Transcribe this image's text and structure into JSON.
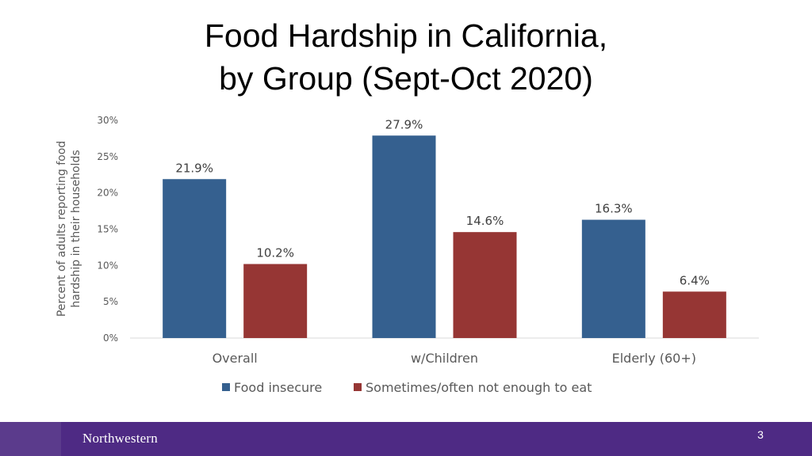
{
  "slide": {
    "title_line1": "Food Hardship in California,",
    "title_line2": "by Group (Sept-Oct 2020)",
    "page_number": "3",
    "logo_text": "Northwestern",
    "footer_color": "#4e2a84"
  },
  "chart_data": {
    "type": "bar",
    "ylabel_line1": "Percent of adults reporting food",
    "ylabel_line2": "hardship in their households",
    "ylim": [
      0,
      30
    ],
    "yticks": [
      {
        "value": 0,
        "label": "0%"
      },
      {
        "value": 5,
        "label": "5%"
      },
      {
        "value": 10,
        "label": "10%"
      },
      {
        "value": 15,
        "label": "15%"
      },
      {
        "value": 20,
        "label": "20%"
      },
      {
        "value": 25,
        "label": "25%"
      },
      {
        "value": 30,
        "label": "30%"
      }
    ],
    "categories": [
      "Overall",
      "w/Children",
      "Elderly (60+)"
    ],
    "series": [
      {
        "name": "Food insecure",
        "color": "#35608f",
        "values": [
          21.9,
          27.9,
          16.3
        ],
        "labels": [
          "21.9%",
          "27.9%",
          "16.3%"
        ]
      },
      {
        "name": "Sometimes/often not enough to eat",
        "color": "#963634",
        "values": [
          10.2,
          14.6,
          6.4
        ],
        "labels": [
          "10.2%",
          "14.6%",
          "6.4%"
        ]
      }
    ],
    "grid": false,
    "legend_position": "bottom"
  }
}
